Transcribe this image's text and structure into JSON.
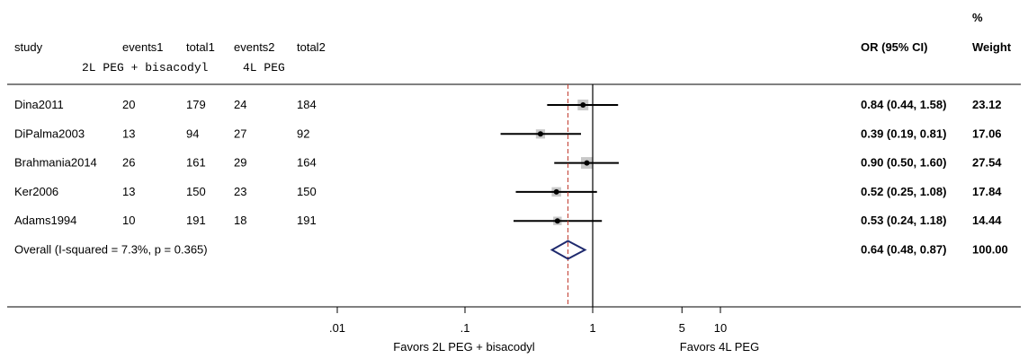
{
  "chart_data": {
    "type": "forest",
    "scale": "log",
    "columns": {
      "study": "study",
      "events1": "events1",
      "total1": "total1",
      "events2": "events2",
      "total2": "total2",
      "group1": "2L PEG + bisacodyl",
      "group2": "4L PEG",
      "or": "OR (95% CI)",
      "weight_pct": "%",
      "weight": "Weight"
    },
    "studies": [
      {
        "study": "Dina2011",
        "events1": "20",
        "total1": "179",
        "events2": "24",
        "total2": "184",
        "or": 0.84,
        "lo": 0.44,
        "hi": 1.58,
        "or_text": "0.84 (0.44, 1.58)",
        "weight": 23.12,
        "weight_text": "23.12"
      },
      {
        "study": "DiPalma2003",
        "events1": "13",
        "total1": "94",
        "events2": "27",
        "total2": "92",
        "or": 0.39,
        "lo": 0.19,
        "hi": 0.81,
        "or_text": "0.39 (0.19, 0.81)",
        "weight": 17.06,
        "weight_text": "17.06"
      },
      {
        "study": "Brahmania2014",
        "events1": "26",
        "total1": "161",
        "events2": "29",
        "total2": "164",
        "or": 0.9,
        "lo": 0.5,
        "hi": 1.6,
        "or_text": "0.90 (0.50, 1.60)",
        "weight": 27.54,
        "weight_text": "27.54"
      },
      {
        "study": "Ker2006",
        "events1": "13",
        "total1": "150",
        "events2": "23",
        "total2": "150",
        "or": 0.52,
        "lo": 0.25,
        "hi": 1.08,
        "or_text": "0.52 (0.25, 1.08)",
        "weight": 17.84,
        "weight_text": "17.84"
      },
      {
        "study": "Adams1994",
        "events1": "10",
        "total1": "191",
        "events2": "18",
        "total2": "191",
        "or": 0.53,
        "lo": 0.24,
        "hi": 1.18,
        "or_text": "0.53 (0.24, 1.18)",
        "weight": 14.44,
        "weight_text": "14.44"
      }
    ],
    "overall": {
      "label": "Overall  (I-squared = 7.3%, p = 0.365)",
      "or": 0.64,
      "lo": 0.48,
      "hi": 0.87,
      "or_text": "0.64 (0.48, 0.87)",
      "weight_text": "100.00"
    },
    "x_ticks": [
      {
        "value": 0.01,
        "label": ".01"
      },
      {
        "value": 0.1,
        "label": ".1"
      },
      {
        "value": 1,
        "label": "1"
      },
      {
        "value": 5,
        "label": "5"
      },
      {
        "value": 10,
        "label": "10"
      }
    ],
    "xlabel_left": "Favors 2L PEG + bisacodyl",
    "xlabel_right": "Favors 4L PEG",
    "null_value": 1,
    "colors": {
      "diamond": "#1f2a6e",
      "overall_line": "#c0392b",
      "box": "#c8c8c8",
      "ink": "#000000"
    }
  }
}
